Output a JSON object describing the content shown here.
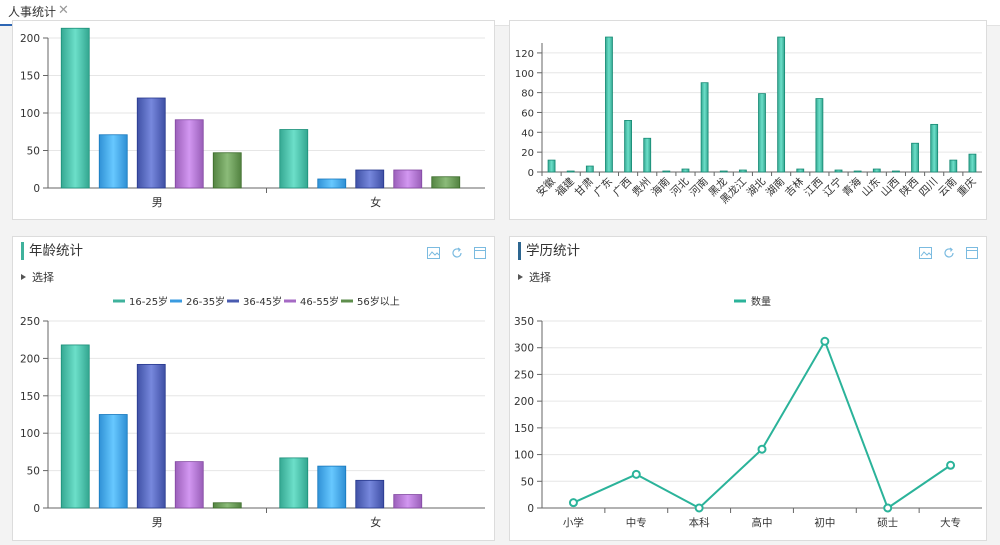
{
  "tab": {
    "label": "人事统计",
    "close": "✕"
  },
  "panels": {
    "age": {
      "title": "年龄统计",
      "select_label": "选择"
    },
    "education": {
      "title": "学历统计",
      "select_label": "选择"
    }
  },
  "colors": {
    "series": [
      "#3fb29c",
      "#3a9be0",
      "#4a5bb0",
      "#a56ac4",
      "#5e8e4c"
    ],
    "line": "#2bb39a",
    "axis": "#666666",
    "grid": "#e6e6e6"
  },
  "chart_data": [
    {
      "id": "gender-top",
      "type": "bar",
      "categories": [
        "男",
        "女"
      ],
      "series": [
        {
          "name": "16-25岁",
          "values": [
            213,
            78
          ]
        },
        {
          "name": "26-35岁",
          "values": [
            71,
            12
          ]
        },
        {
          "name": "36-45岁",
          "values": [
            120,
            24
          ]
        },
        {
          "name": "46-55岁",
          "values": [
            91,
            24
          ]
        },
        {
          "name": "56岁以上",
          "values": [
            47,
            15
          ]
        }
      ],
      "ylim": [
        0,
        200
      ],
      "yticks": [
        0,
        50,
        100,
        150,
        200
      ],
      "ytick_labels": [
        "0",
        "50",
        "100",
        "150",
        "200"
      ]
    },
    {
      "id": "province",
      "type": "bar",
      "categories": [
        "安徽",
        "福建",
        "甘肃",
        "广东",
        "广西",
        "贵州",
        "海南",
        "河北",
        "河南",
        "黑龙",
        "黑龙江",
        "湖北",
        "湖南",
        "吉林",
        "江西",
        "辽宁",
        "青海",
        "山东",
        "山西",
        "陕西",
        "四川",
        "云南",
        "重庆"
      ],
      "values": [
        12,
        1,
        6,
        136,
        52,
        34,
        1,
        3,
        90,
        1,
        2,
        79,
        136,
        3,
        74,
        2,
        1,
        3,
        1,
        29,
        48,
        12,
        18
      ],
      "ylim": [
        0,
        130
      ],
      "yticks": [
        0,
        20,
        40,
        60,
        80,
        100,
        120
      ],
      "ytick_labels": [
        "0",
        "20",
        "40",
        "60",
        "80",
        "100",
        "120"
      ]
    },
    {
      "id": "age",
      "type": "bar",
      "categories": [
        "男",
        "女"
      ],
      "legend": [
        "16-25岁",
        "26-35岁",
        "36-45岁",
        "46-55岁",
        "56岁以上"
      ],
      "series": [
        {
          "name": "16-25岁",
          "values": [
            218,
            67
          ]
        },
        {
          "name": "26-35岁",
          "values": [
            125,
            56
          ]
        },
        {
          "name": "36-45岁",
          "values": [
            192,
            37
          ]
        },
        {
          "name": "46-55岁",
          "values": [
            62,
            18
          ]
        },
        {
          "name": "56岁以上",
          "values": [
            7,
            0
          ]
        }
      ],
      "ylim": [
        0,
        250
      ],
      "yticks": [
        0,
        50,
        100,
        150,
        200,
        250
      ],
      "ytick_labels": [
        "0",
        "50",
        "100",
        "150",
        "200",
        "250"
      ]
    },
    {
      "id": "education",
      "type": "line",
      "legend": [
        "数量"
      ],
      "categories": [
        "小学",
        "中专",
        "本科",
        "高中",
        "初中",
        "硕士",
        "大专"
      ],
      "values": [
        10,
        63,
        0,
        110,
        312,
        0,
        80
      ],
      "ylim": [
        0,
        350
      ],
      "yticks": [
        0,
        50,
        100,
        150,
        200,
        250,
        300,
        350
      ],
      "ytick_labels": [
        "0",
        "50",
        "100",
        "150",
        "200",
        "250",
        "300",
        "350"
      ]
    }
  ]
}
